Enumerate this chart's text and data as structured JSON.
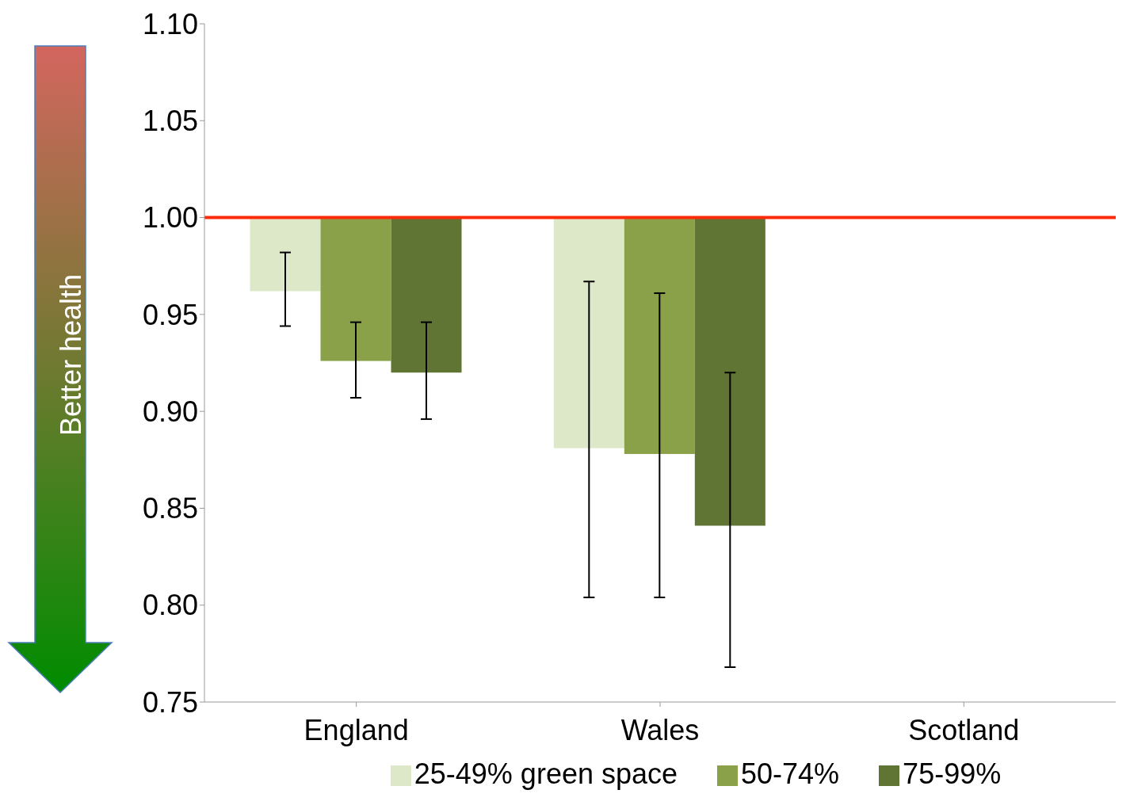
{
  "chart_data": {
    "type": "bar",
    "categories": [
      "England",
      "Wales",
      "Scotland"
    ],
    "series": [
      {
        "name": "25-49% green space",
        "color": "#dde8c9",
        "values": [
          -0.038,
          -0.119,
          null
        ],
        "base": [
          1,
          1,
          null
        ],
        "errors": [
          [
            0.944,
            0.982
          ],
          [
            0.804,
            0.967
          ],
          null
        ]
      },
      {
        "name": "50-74%",
        "color": "#8aa14a",
        "values": [
          -0.074,
          -0.122,
          null
        ],
        "base": [
          1,
          1,
          null
        ],
        "errors": [
          [
            0.907,
            0.946
          ],
          [
            0.804,
            0.961
          ],
          null
        ]
      },
      {
        "name": "75-99%",
        "color": "#607434",
        "values": [
          -0.08,
          -0.159,
          null
        ],
        "base": [
          1,
          1,
          null
        ],
        "errors": [
          [
            0.896,
            0.946
          ],
          [
            0.768,
            0.92
          ],
          null
        ]
      }
    ],
    "ylim": [
      0.75,
      1.1
    ],
    "yticks": [
      {
        "value": 0.75,
        "label": "0.75"
      },
      {
        "value": 0.8,
        "label": "0.80"
      },
      {
        "value": 0.85,
        "label": "0.85"
      },
      {
        "value": 0.9,
        "label": "0.90"
      },
      {
        "value": 0.95,
        "label": "0.95"
      },
      {
        "value": 1,
        "label": "1.00"
      },
      {
        "value": 1.05,
        "label": "1.05"
      },
      {
        "value": 1.1,
        "label": "1.10"
      }
    ],
    "ref_lines": [
      {
        "axis": "y",
        "value": 1,
        "color": "#ff2a0a"
      }
    ],
    "annotations": [
      "Better health"
    ],
    "legend": "bottom",
    "grid": false
  }
}
